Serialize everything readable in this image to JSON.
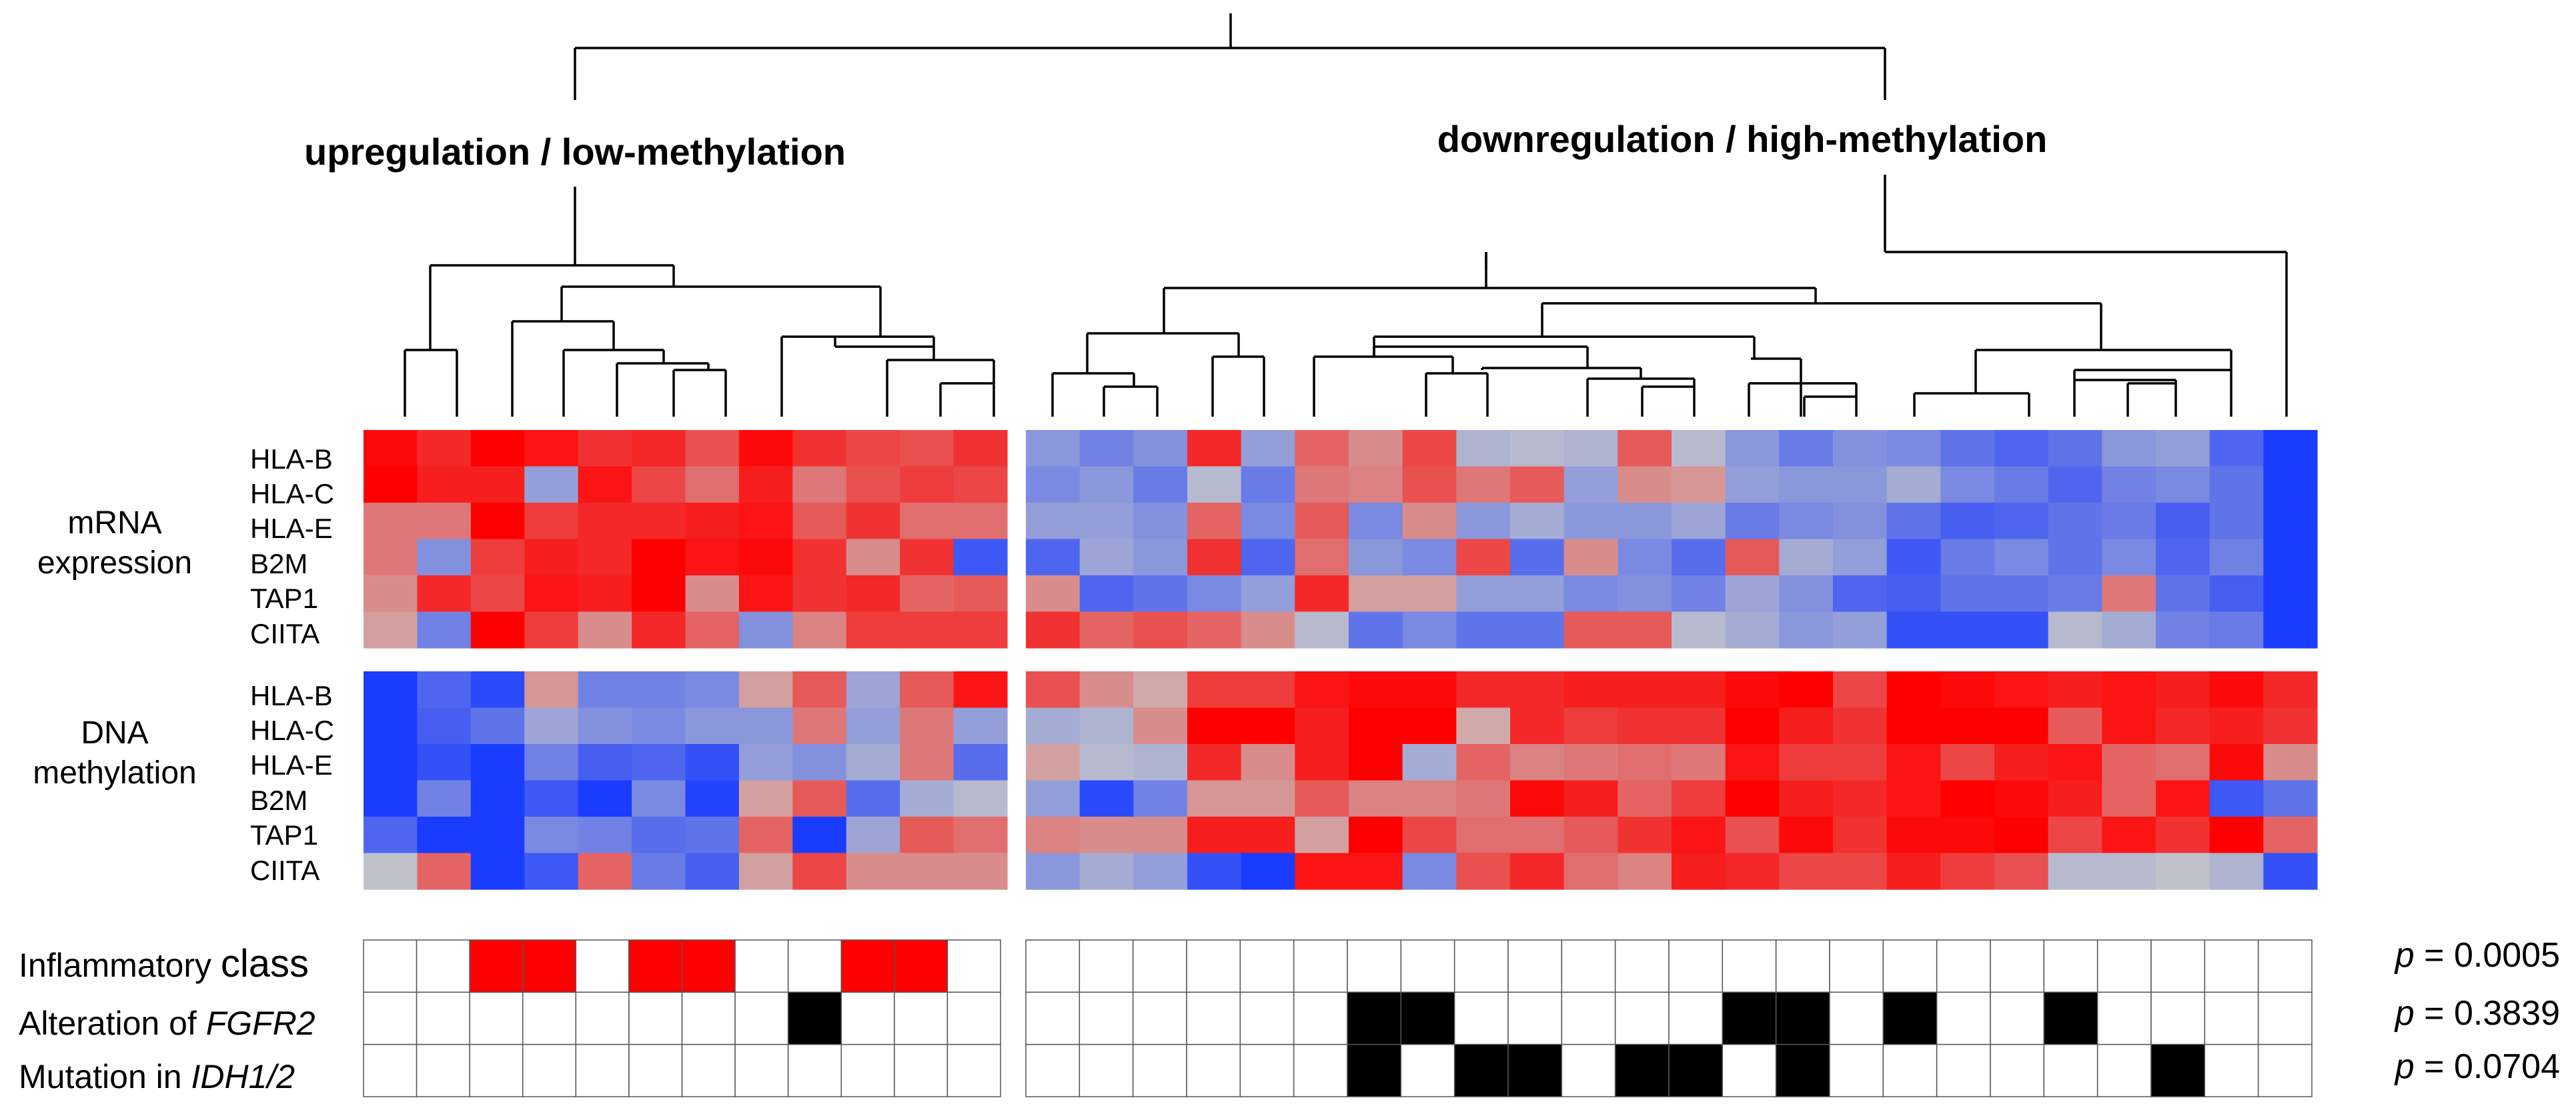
{
  "titles": {
    "left": "upregulation / low-methylation",
    "right": "downregulation / high-methylation"
  },
  "blocks": {
    "mrna": [
      "mRNA",
      "expression"
    ],
    "dna": [
      "DNA",
      "methylation"
    ]
  },
  "genes": [
    "HLA-B",
    "HLA-C",
    "HLA-E",
    "B2M",
    "TAP1",
    "CIITA"
  ],
  "annotations": [
    {
      "prefix": "Inflammatory ",
      "italic": "",
      "suffix": "class",
      "p_label": "p",
      "p_value": " = 0.0005"
    },
    {
      "prefix": "Alteration of ",
      "italic": "FGFR2",
      "suffix": "",
      "p_label": "p",
      "p_value": " = 0.3839"
    },
    {
      "prefix": "Mutation in ",
      "italic": "IDH1/2",
      "suffix": "",
      "p_label": "p",
      "p_value": " = 0.0704"
    }
  ],
  "colors": {
    "red": "#ff0000",
    "blue": "#1a3cff",
    "neutral": "#c8c8c8",
    "inflammatory": "#ff0000",
    "alteration": "#000000"
  },
  "heatmap": {
    "scale": "values range -1 (blue) .. 0 (grey) .. +1 (red)",
    "mrna": {
      "left": [
        [
          0.95,
          0.8,
          1.0,
          0.9,
          0.75,
          0.8,
          0.6,
          0.95,
          0.75,
          0.65,
          0.6,
          0.75
        ],
        [
          1.0,
          0.85,
          0.85,
          -0.3,
          0.9,
          0.65,
          0.45,
          0.85,
          0.4,
          0.6,
          0.7,
          0.65
        ],
        [
          0.4,
          0.4,
          1.0,
          0.7,
          0.8,
          0.8,
          0.85,
          0.9,
          0.55,
          0.75,
          0.45,
          0.45
        ],
        [
          0.4,
          -0.4,
          0.7,
          0.85,
          0.8,
          1.0,
          0.9,
          0.95,
          0.75,
          0.3,
          0.75,
          -0.8
        ],
        [
          0.3,
          0.8,
          0.65,
          0.9,
          0.85,
          1.0,
          0.3,
          0.9,
          0.75,
          0.8,
          0.5,
          0.55
        ],
        [
          0.2,
          -0.5,
          1.0,
          0.7,
          0.3,
          0.8,
          0.5,
          -0.4,
          0.35,
          0.7,
          0.7,
          0.7
        ]
      ],
      "right": [
        [
          -0.35,
          -0.5,
          -0.4,
          0.8,
          -0.3,
          0.5,
          0.3,
          0.65,
          -0.15,
          -0.1,
          -0.15,
          0.55,
          -0.1,
          -0.35,
          -0.55,
          -0.4,
          -0.45,
          -0.6,
          -0.7,
          -0.6,
          -0.35,
          -0.3,
          -0.7,
          -1.0
        ],
        [
          -0.45,
          -0.35,
          -0.55,
          -0.1,
          -0.55,
          0.4,
          0.35,
          0.6,
          0.4,
          0.55,
          -0.3,
          0.3,
          0.25,
          -0.3,
          -0.35,
          -0.35,
          -0.2,
          -0.45,
          -0.55,
          -0.7,
          -0.5,
          -0.45,
          -0.6,
          -1.0
        ],
        [
          -0.3,
          -0.3,
          -0.4,
          0.5,
          -0.45,
          0.55,
          -0.45,
          0.3,
          -0.35,
          -0.2,
          -0.35,
          -0.35,
          -0.25,
          -0.55,
          -0.45,
          -0.4,
          -0.6,
          -0.75,
          -0.7,
          -0.6,
          -0.55,
          -0.75,
          -0.6,
          -1.0
        ],
        [
          -0.7,
          -0.25,
          -0.35,
          0.75,
          -0.7,
          0.45,
          -0.35,
          -0.45,
          0.65,
          -0.65,
          0.3,
          -0.45,
          -0.65,
          0.55,
          -0.2,
          -0.3,
          -0.8,
          -0.55,
          -0.45,
          -0.6,
          -0.45,
          -0.7,
          -0.5,
          -1.0
        ],
        [
          0.3,
          -0.7,
          -0.6,
          -0.45,
          -0.3,
          0.8,
          0.2,
          0.2,
          -0.3,
          -0.3,
          -0.45,
          -0.4,
          -0.5,
          -0.25,
          -0.4,
          -0.7,
          -0.75,
          -0.6,
          -0.6,
          -0.55,
          0.4,
          -0.6,
          -0.75,
          -1.0
        ],
        [
          0.75,
          0.5,
          0.6,
          0.5,
          0.3,
          -0.1,
          -0.6,
          -0.45,
          -0.6,
          -0.6,
          0.55,
          0.55,
          -0.1,
          -0.2,
          -0.35,
          -0.3,
          -0.85,
          -0.85,
          -0.85,
          -0.1,
          -0.2,
          -0.5,
          -0.55,
          -1.0
        ]
      ]
    },
    "dna": {
      "left": [
        [
          -1.0,
          -0.7,
          -0.9,
          0.25,
          -0.5,
          -0.5,
          -0.45,
          0.2,
          0.55,
          -0.25,
          0.55,
          0.9
        ],
        [
          -1.0,
          -0.75,
          -0.6,
          -0.25,
          -0.4,
          -0.45,
          -0.35,
          -0.35,
          0.4,
          -0.3,
          0.4,
          -0.3
        ],
        [
          -1.0,
          -0.85,
          -1.0,
          -0.5,
          -0.75,
          -0.7,
          -0.85,
          -0.3,
          -0.4,
          -0.2,
          0.4,
          -0.65
        ],
        [
          -1.0,
          -0.5,
          -1.0,
          -0.8,
          -1.0,
          -0.45,
          -0.95,
          0.2,
          0.55,
          -0.65,
          -0.2,
          -0.1
        ],
        [
          -0.7,
          -1.0,
          -1.0,
          -0.45,
          -0.5,
          -0.65,
          -0.6,
          0.5,
          -1.0,
          -0.25,
          0.55,
          0.45
        ],
        [
          -0.05,
          0.5,
          -1.0,
          -0.8,
          0.5,
          -0.55,
          -0.75,
          0.2,
          0.65,
          0.3,
          0.3,
          0.3
        ]
      ],
      "right": [
        [
          0.6,
          0.3,
          0.15,
          0.7,
          0.7,
          0.9,
          0.95,
          0.95,
          0.8,
          0.8,
          0.85,
          0.85,
          0.85,
          0.95,
          1.0,
          0.65,
          1.0,
          0.95,
          0.9,
          0.85,
          0.9,
          0.85,
          0.95,
          0.8
        ],
        [
          -0.2,
          -0.15,
          0.3,
          1.0,
          1.0,
          0.85,
          1.0,
          1.0,
          0.15,
          0.8,
          0.7,
          0.75,
          0.75,
          1.0,
          0.85,
          0.75,
          1.0,
          1.0,
          1.0,
          0.55,
          0.9,
          0.8,
          0.85,
          0.75
        ],
        [
          0.2,
          -0.1,
          -0.15,
          0.8,
          0.3,
          0.85,
          1.0,
          -0.2,
          0.5,
          0.35,
          0.4,
          0.45,
          0.4,
          0.9,
          0.7,
          0.7,
          0.9,
          0.65,
          0.85,
          0.9,
          0.5,
          0.45,
          0.95,
          0.3
        ],
        [
          -0.3,
          -0.9,
          -0.5,
          0.25,
          0.25,
          0.55,
          0.35,
          0.35,
          0.4,
          0.95,
          0.85,
          0.5,
          0.7,
          1.0,
          0.85,
          0.8,
          0.9,
          1.0,
          0.95,
          0.85,
          0.5,
          0.9,
          -0.8,
          -0.6
        ],
        [
          0.35,
          0.3,
          0.3,
          0.85,
          0.85,
          0.2,
          1.0,
          0.65,
          0.45,
          0.45,
          0.55,
          0.75,
          0.9,
          0.6,
          0.95,
          0.75,
          0.95,
          0.95,
          1.0,
          0.65,
          0.9,
          0.75,
          1.0,
          0.5
        ],
        [
          -0.35,
          -0.2,
          -0.3,
          -0.85,
          -1.0,
          0.9,
          0.9,
          -0.45,
          0.6,
          0.8,
          0.45,
          0.35,
          0.85,
          0.8,
          0.65,
          0.65,
          0.85,
          0.7,
          0.6,
          -0.1,
          -0.1,
          -0.05,
          -0.15,
          -0.85
        ]
      ]
    }
  },
  "annotation_grid": {
    "left": [
      [
        0,
        0,
        1,
        1,
        0,
        1,
        1,
        0,
        0,
        1,
        1,
        0
      ],
      [
        0,
        0,
        0,
        0,
        0,
        0,
        0,
        0,
        1,
        0,
        0,
        0
      ],
      [
        0,
        0,
        0,
        0,
        0,
        0,
        0,
        0,
        0,
        0,
        0,
        0
      ]
    ],
    "right": [
      [
        0,
        0,
        0,
        0,
        0,
        0,
        0,
        0,
        0,
        0,
        0,
        0,
        0,
        0,
        0,
        0,
        0,
        0,
        0,
        0,
        0,
        0,
        0,
        0
      ],
      [
        0,
        0,
        0,
        0,
        0,
        0,
        1,
        1,
        0,
        0,
        0,
        0,
        0,
        1,
        1,
        0,
        1,
        0,
        0,
        1,
        0,
        0,
        0,
        0
      ],
      [
        0,
        0,
        0,
        0,
        0,
        0,
        1,
        0,
        1,
        1,
        0,
        1,
        1,
        0,
        1,
        0,
        0,
        0,
        0,
        0,
        0,
        1,
        0,
        0
      ]
    ]
  }
}
